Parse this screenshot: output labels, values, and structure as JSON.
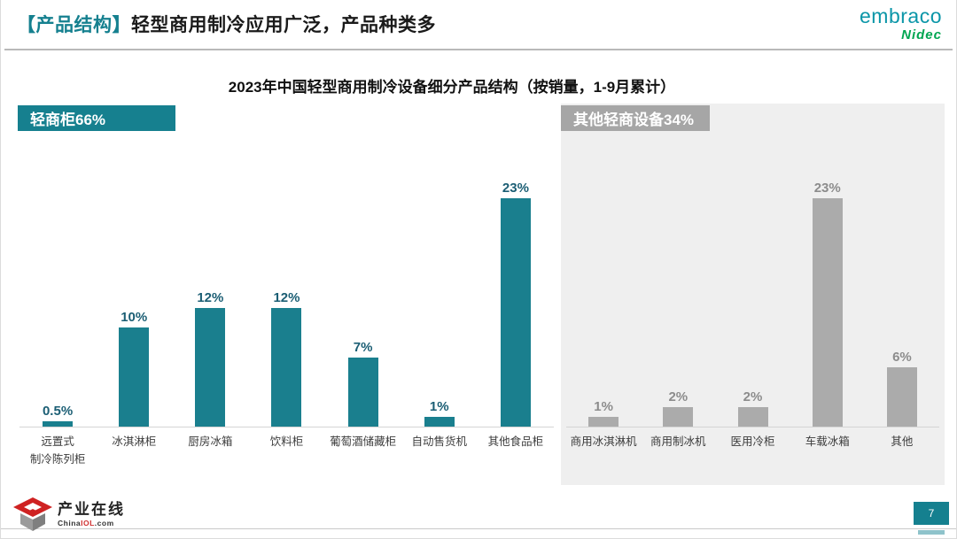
{
  "header": {
    "title_tag": "【产品结构】",
    "title_text": "轻型商用制冷应用广泛，产品种类多",
    "logo_primary": "embraco",
    "logo_secondary": "Nidec"
  },
  "chart_title": "2023年中国轻型商用制冷设备细分产品结构（按销量，1-9月累计）",
  "chart_data": [
    {
      "type": "bar",
      "title": "轻商柜66%",
      "group_name": "轻商柜",
      "group_share_pct": 66,
      "categories": [
        "远置式\n制冷陈列柜",
        "冰淇淋柜",
        "厨房冰箱",
        "饮料柜",
        "葡萄酒储藏柜",
        "自动售货机",
        "其他食品柜"
      ],
      "values": [
        0.5,
        10,
        12,
        12,
        7,
        1,
        23
      ],
      "labels": [
        "0.5%",
        "10%",
        "12%",
        "12%",
        "7%",
        "1%",
        "23%"
      ],
      "bar_color": "#1a7f8e",
      "label_color": "#1b5e74",
      "background": "#ffffff",
      "ylim": [
        0,
        25
      ],
      "grid": false,
      "legend": "none"
    },
    {
      "type": "bar",
      "title": "其他轻商设备34%",
      "group_name": "其他轻商设备",
      "group_share_pct": 34,
      "categories": [
        "商用冰淇淋机",
        "商用制冰机",
        "医用冷柜",
        "车载冰箱",
        "其他"
      ],
      "values": [
        1,
        2,
        2,
        23,
        6
      ],
      "labels": [
        "1%",
        "2%",
        "2%",
        "23%",
        "6%"
      ],
      "bar_color": "#ababab",
      "label_color": "#8c8c8c",
      "background": "#efefef",
      "ylim": [
        0,
        25
      ],
      "grid": false,
      "legend": "none"
    }
  ],
  "footer": {
    "brand": "产业在线",
    "brand_sub_1": "China",
    "brand_sub_2": "IOL",
    "brand_sub_3": ".com",
    "page_number": "7"
  }
}
